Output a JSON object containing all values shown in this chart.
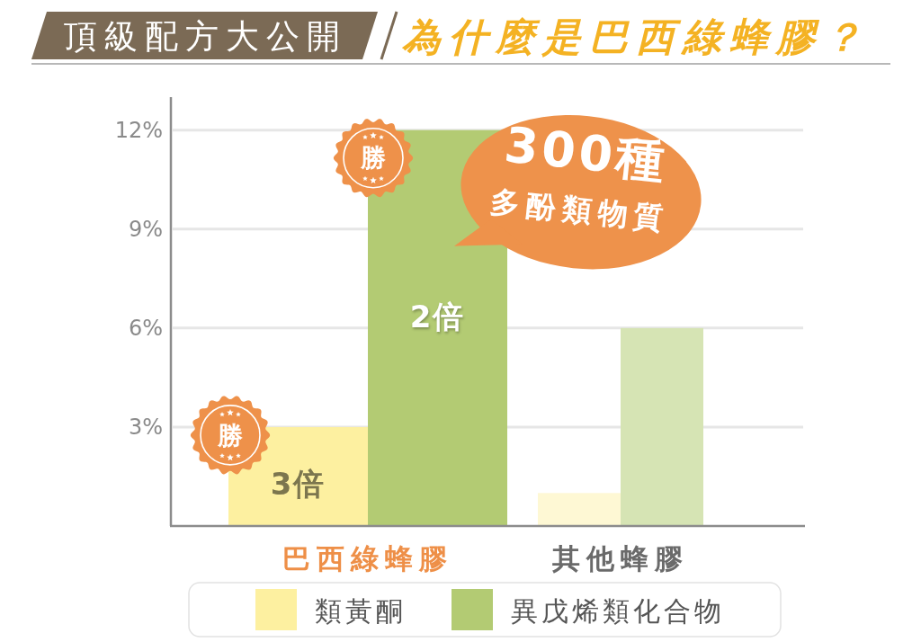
{
  "chart_data": {
    "type": "bar",
    "title": "頂級配方大公開",
    "subtitle": "為什麼是巴西綠蜂膠？",
    "categories": [
      "巴西綠蜂膠",
      "其他蜂膠"
    ],
    "series": [
      {
        "name": "類黃酮",
        "color": "#fdf0a0",
        "colors": [
          "#fdf0a0",
          "#fef8d4"
        ],
        "values": [
          3,
          1
        ]
      },
      {
        "name": "異戊烯類化合物",
        "color": "#b3cb73",
        "colors": [
          "#b3cb73",
          "#d6e4b4"
        ],
        "values": [
          12,
          6
        ]
      }
    ],
    "ylim": [
      0,
      13
    ],
    "yticks": [
      {
        "value": 3,
        "label": "3%"
      },
      {
        "value": 6,
        "label": "6%"
      },
      {
        "value": 9,
        "label": "9%"
      },
      {
        "value": 12,
        "label": "12%"
      }
    ],
    "grid": "y",
    "legend": "bottom",
    "annotations": [
      "勝",
      "300種",
      "多酚類物質",
      "2倍",
      "勝",
      "3倍"
    ]
  }
}
